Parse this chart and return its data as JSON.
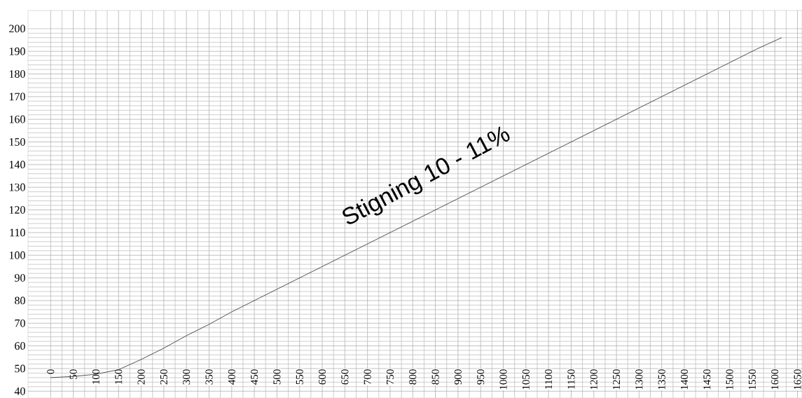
{
  "chart_data": {
    "type": "line",
    "annotations": [
      "Stigning 10 - 11%"
    ],
    "x": [
      0,
      50,
      100,
      150,
      200,
      250,
      300,
      350,
      400,
      500,
      600,
      700,
      800,
      900,
      1000,
      1100,
      1200,
      1300,
      1400,
      1500,
      1560,
      1615
    ],
    "values": [
      46,
      46.5,
      47.5,
      49.5,
      54,
      59,
      64.5,
      69.5,
      75,
      85,
      95,
      105,
      115,
      125,
      135,
      145,
      155,
      165,
      175,
      185,
      191,
      196
    ],
    "color": "#404040",
    "xlim": [
      -50,
      1660
    ],
    "ylim": [
      37,
      208
    ],
    "xticks": [
      0,
      50,
      100,
      150,
      200,
      250,
      300,
      350,
      400,
      450,
      500,
      550,
      600,
      650,
      700,
      750,
      800,
      850,
      900,
      950,
      1000,
      1050,
      1100,
      1150,
      1200,
      1250,
      1300,
      1350,
      1400,
      1450,
      1500,
      1550,
      1600,
      1650
    ],
    "yticks": [
      40,
      50,
      60,
      70,
      80,
      90,
      100,
      110,
      120,
      130,
      140,
      150,
      160,
      170,
      180,
      190,
      200
    ],
    "grid": true,
    "marker": "none",
    "line_style": "solid"
  }
}
